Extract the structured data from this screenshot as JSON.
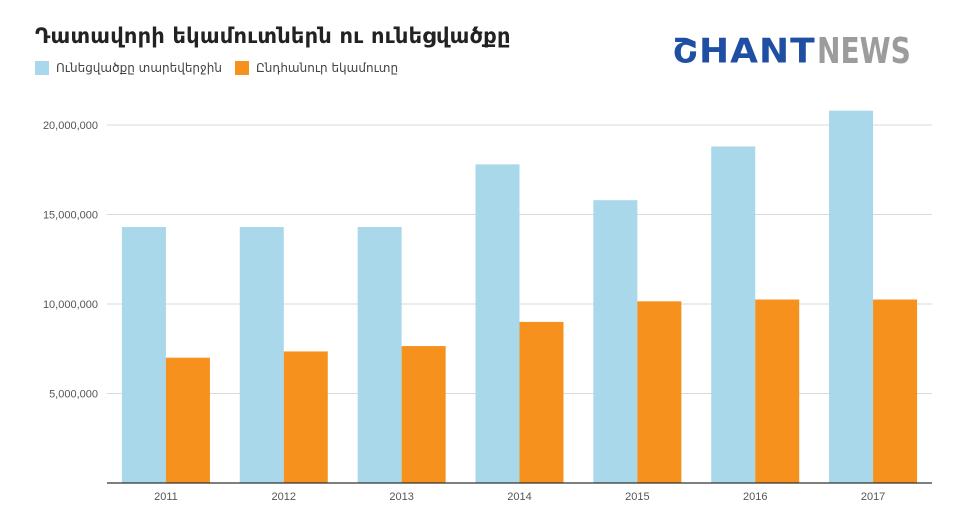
{
  "chart_data": {
    "type": "bar",
    "title": "Դատավորի եկամուտներն ու ունեցվածքը",
    "categories": [
      "2011",
      "2012",
      "2013",
      "2014",
      "2015",
      "2016",
      "2017"
    ],
    "series": [
      {
        "name": "Ունեցվածքը տարեվերջին",
        "color": "#a8d8ea",
        "values": [
          14300000,
          14300000,
          14300000,
          17800000,
          15800000,
          18800000,
          20800000
        ]
      },
      {
        "name": "Ընդհանուր եկամուտը",
        "color": "#f7911d",
        "values": [
          7000000,
          7350000,
          7650000,
          9000000,
          10150000,
          10250000,
          10250000
        ]
      }
    ],
    "y_ticks": [
      "5,000,000",
      "10,000,000",
      "15,000,000",
      "20,000,000"
    ],
    "y_tick_values": [
      5000000,
      10000000,
      15000000,
      20000000
    ],
    "ylim": [
      0,
      21000000
    ],
    "grid": true,
    "legend_position": "top-left"
  },
  "logo": {
    "part1": "ՇHANT",
    "part2": "NEWS",
    "icon": "shant-news-logo"
  }
}
